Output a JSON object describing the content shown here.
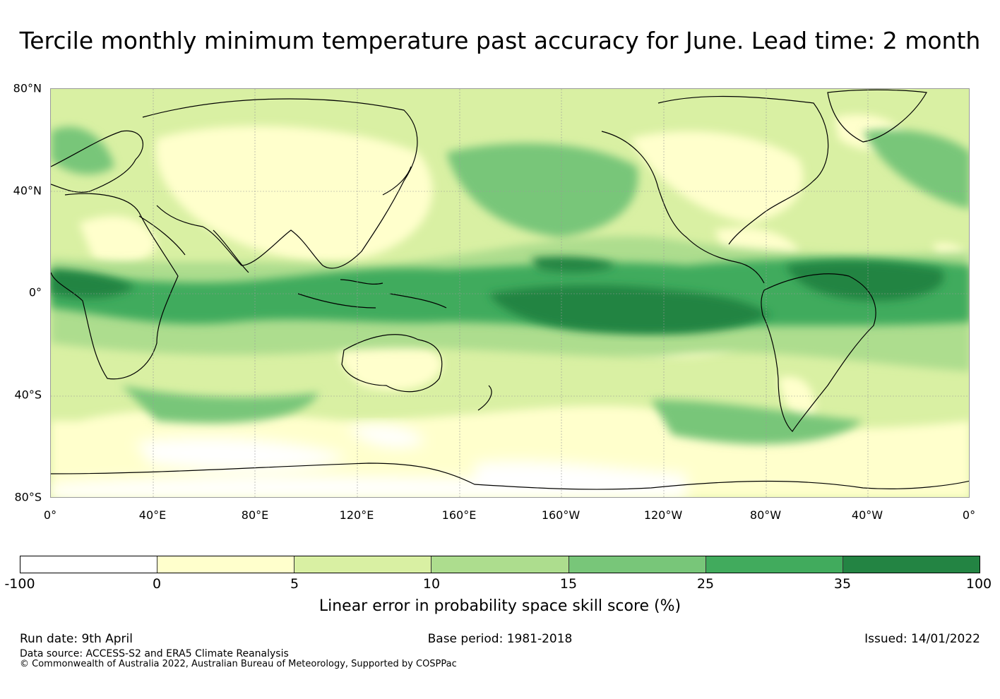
{
  "title": "Tercile monthly minimum temperature past accuracy for June. Lead time: 2 month",
  "map": {
    "lat_labels": [
      "80°N",
      "40°N",
      "0°",
      "40°S",
      "80°S"
    ],
    "lon_labels": [
      "0°",
      "40°E",
      "80°E",
      "120°E",
      "160°E",
      "160°W",
      "120°W",
      "80°W",
      "40°W",
      "0°"
    ],
    "lat_range": [
      -80,
      80
    ],
    "lon_range_desc": "0° to 360°",
    "colors": {
      "land_outline": "#000000",
      "grid": "#999999",
      "band_neg": "#ffffff",
      "band_0_5": "#ffffcc",
      "band_5_10": "#d9f0a3",
      "band_10_15": "#addd8e",
      "band_15_25": "#78c679",
      "band_25_35": "#41ab5d",
      "band_35_100": "#238443"
    }
  },
  "colorbar": {
    "ticks": [
      "-100",
      "0",
      "5",
      "10",
      "15",
      "25",
      "35",
      "100"
    ],
    "colors": [
      "#ffffff",
      "#ffffcc",
      "#d9f0a3",
      "#addd8e",
      "#78c679",
      "#41ab5d",
      "#238443"
    ],
    "label": "Linear error in probability space skill score (%)"
  },
  "footer": {
    "run_date": "Run date: 9th April",
    "base_period": "Base period: 1981-2018",
    "issued": "Issued: 14/01/2022",
    "data_source": "Data source: ACCESS-S2 and ERA5 Climate Reanalysis",
    "copyright": "© Commonwealth of Australia 2022, Australian Bureau of Meteorology, Supported by COSPPac"
  }
}
